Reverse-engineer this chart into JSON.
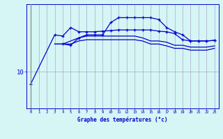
{
  "xlabel": "Graphe des températures (°c)",
  "hours": [
    0,
    1,
    2,
    3,
    4,
    5,
    6,
    7,
    8,
    9,
    10,
    11,
    12,
    13,
    14,
    15,
    16,
    17,
    18,
    19,
    20,
    21,
    22,
    23
  ],
  "line1_x": [
    0,
    3,
    4,
    5,
    6,
    7,
    8,
    9,
    10,
    11,
    12,
    13,
    14,
    15,
    16,
    17,
    18,
    19,
    20,
    21,
    22,
    23
  ],
  "line1_y": [
    8.0,
    16.0,
    15.8,
    17.2,
    16.5,
    16.5,
    16.5,
    16.6,
    16.7,
    16.8,
    16.8,
    16.8,
    16.8,
    16.8,
    16.6,
    16.5,
    16.2,
    15.2,
    15.0,
    15.0,
    15.0,
    15.1
  ],
  "line2_x": [
    4,
    5,
    6,
    7,
    8,
    9,
    10,
    11,
    12,
    13,
    14,
    15,
    16,
    17,
    18,
    19,
    20,
    21,
    22,
    23
  ],
  "line2_y": [
    14.5,
    14.3,
    15.5,
    16.0,
    16.0,
    16.0,
    18.0,
    18.8,
    18.8,
    18.8,
    18.8,
    18.8,
    18.5,
    17.2,
    16.5,
    16.0,
    15.0,
    15.0,
    15.0,
    15.1
  ],
  "line3_x": [
    3,
    4,
    5,
    6,
    7,
    8,
    9,
    10,
    11,
    12,
    13,
    14,
    15,
    16,
    17,
    18,
    19,
    20,
    21,
    22,
    23
  ],
  "line3_y": [
    14.5,
    14.5,
    14.5,
    15.0,
    15.2,
    15.2,
    15.2,
    15.2,
    15.2,
    15.2,
    15.2,
    15.0,
    14.5,
    14.5,
    14.2,
    13.8,
    13.8,
    13.5,
    13.5,
    13.5,
    13.8
  ],
  "line4_x": [
    3,
    4,
    5,
    6,
    7,
    8,
    9,
    10,
    11,
    12,
    13,
    14,
    15,
    16,
    17,
    18,
    19,
    20,
    21,
    22,
    23
  ],
  "line4_y": [
    14.5,
    14.5,
    15.0,
    15.5,
    15.8,
    15.8,
    15.8,
    15.8,
    15.8,
    15.8,
    15.8,
    15.5,
    15.0,
    15.0,
    14.8,
    14.3,
    14.3,
    14.0,
    14.0,
    14.0,
    14.2
  ],
  "line_color": "#0000cc",
  "bg_color": "#d6f5f5",
  "grid_color": "#aaaacc",
  "ylim_min": 4,
  "ylim_max": 21,
  "ytick_val": 10,
  "ytick_label": "10"
}
